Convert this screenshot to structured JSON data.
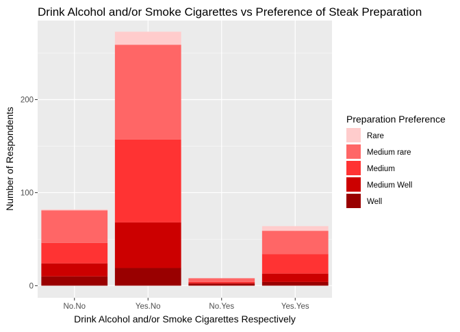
{
  "chart_data": {
    "type": "bar",
    "stacked": true,
    "title": "Drink Alcohol and/or Smoke Cigarettes vs Preference of Steak Preparation",
    "xlabel": "Drink Alcohol and/or Smoke Cigarettes Respectively",
    "ylabel": "Number of Respondents",
    "categories": [
      "No.No",
      "Yes.No",
      "No.Yes",
      "Yes.Yes"
    ],
    "yticks": [
      0,
      100,
      200
    ],
    "ylim": [
      -13,
      285
    ],
    "grid": true,
    "legend_title": "Preparation Preference",
    "legend_position": "right",
    "series": [
      {
        "name": "Well",
        "color": "#990000",
        "values": [
          10,
          19,
          2,
          4
        ]
      },
      {
        "name": "Medium Well",
        "color": "#CC0000",
        "values": [
          14,
          49,
          1,
          9
        ]
      },
      {
        "name": "Medium",
        "color": "#FF3333",
        "values": [
          22,
          89,
          1,
          21
        ]
      },
      {
        "name": "Medium rare",
        "color": "#FF6666",
        "values": [
          35,
          102,
          4,
          25
        ]
      },
      {
        "name": "Rare",
        "color": "#FFCCCC",
        "values": [
          1,
          14,
          0,
          5
        ]
      }
    ],
    "legend_order": [
      "Rare",
      "Medium rare",
      "Medium",
      "Medium Well",
      "Well"
    ]
  },
  "colors": {
    "panel_bg": "#EBEBEB",
    "grid_major": "#FFFFFF",
    "axis_text": "#4D4D4D",
    "text": "#000000"
  }
}
